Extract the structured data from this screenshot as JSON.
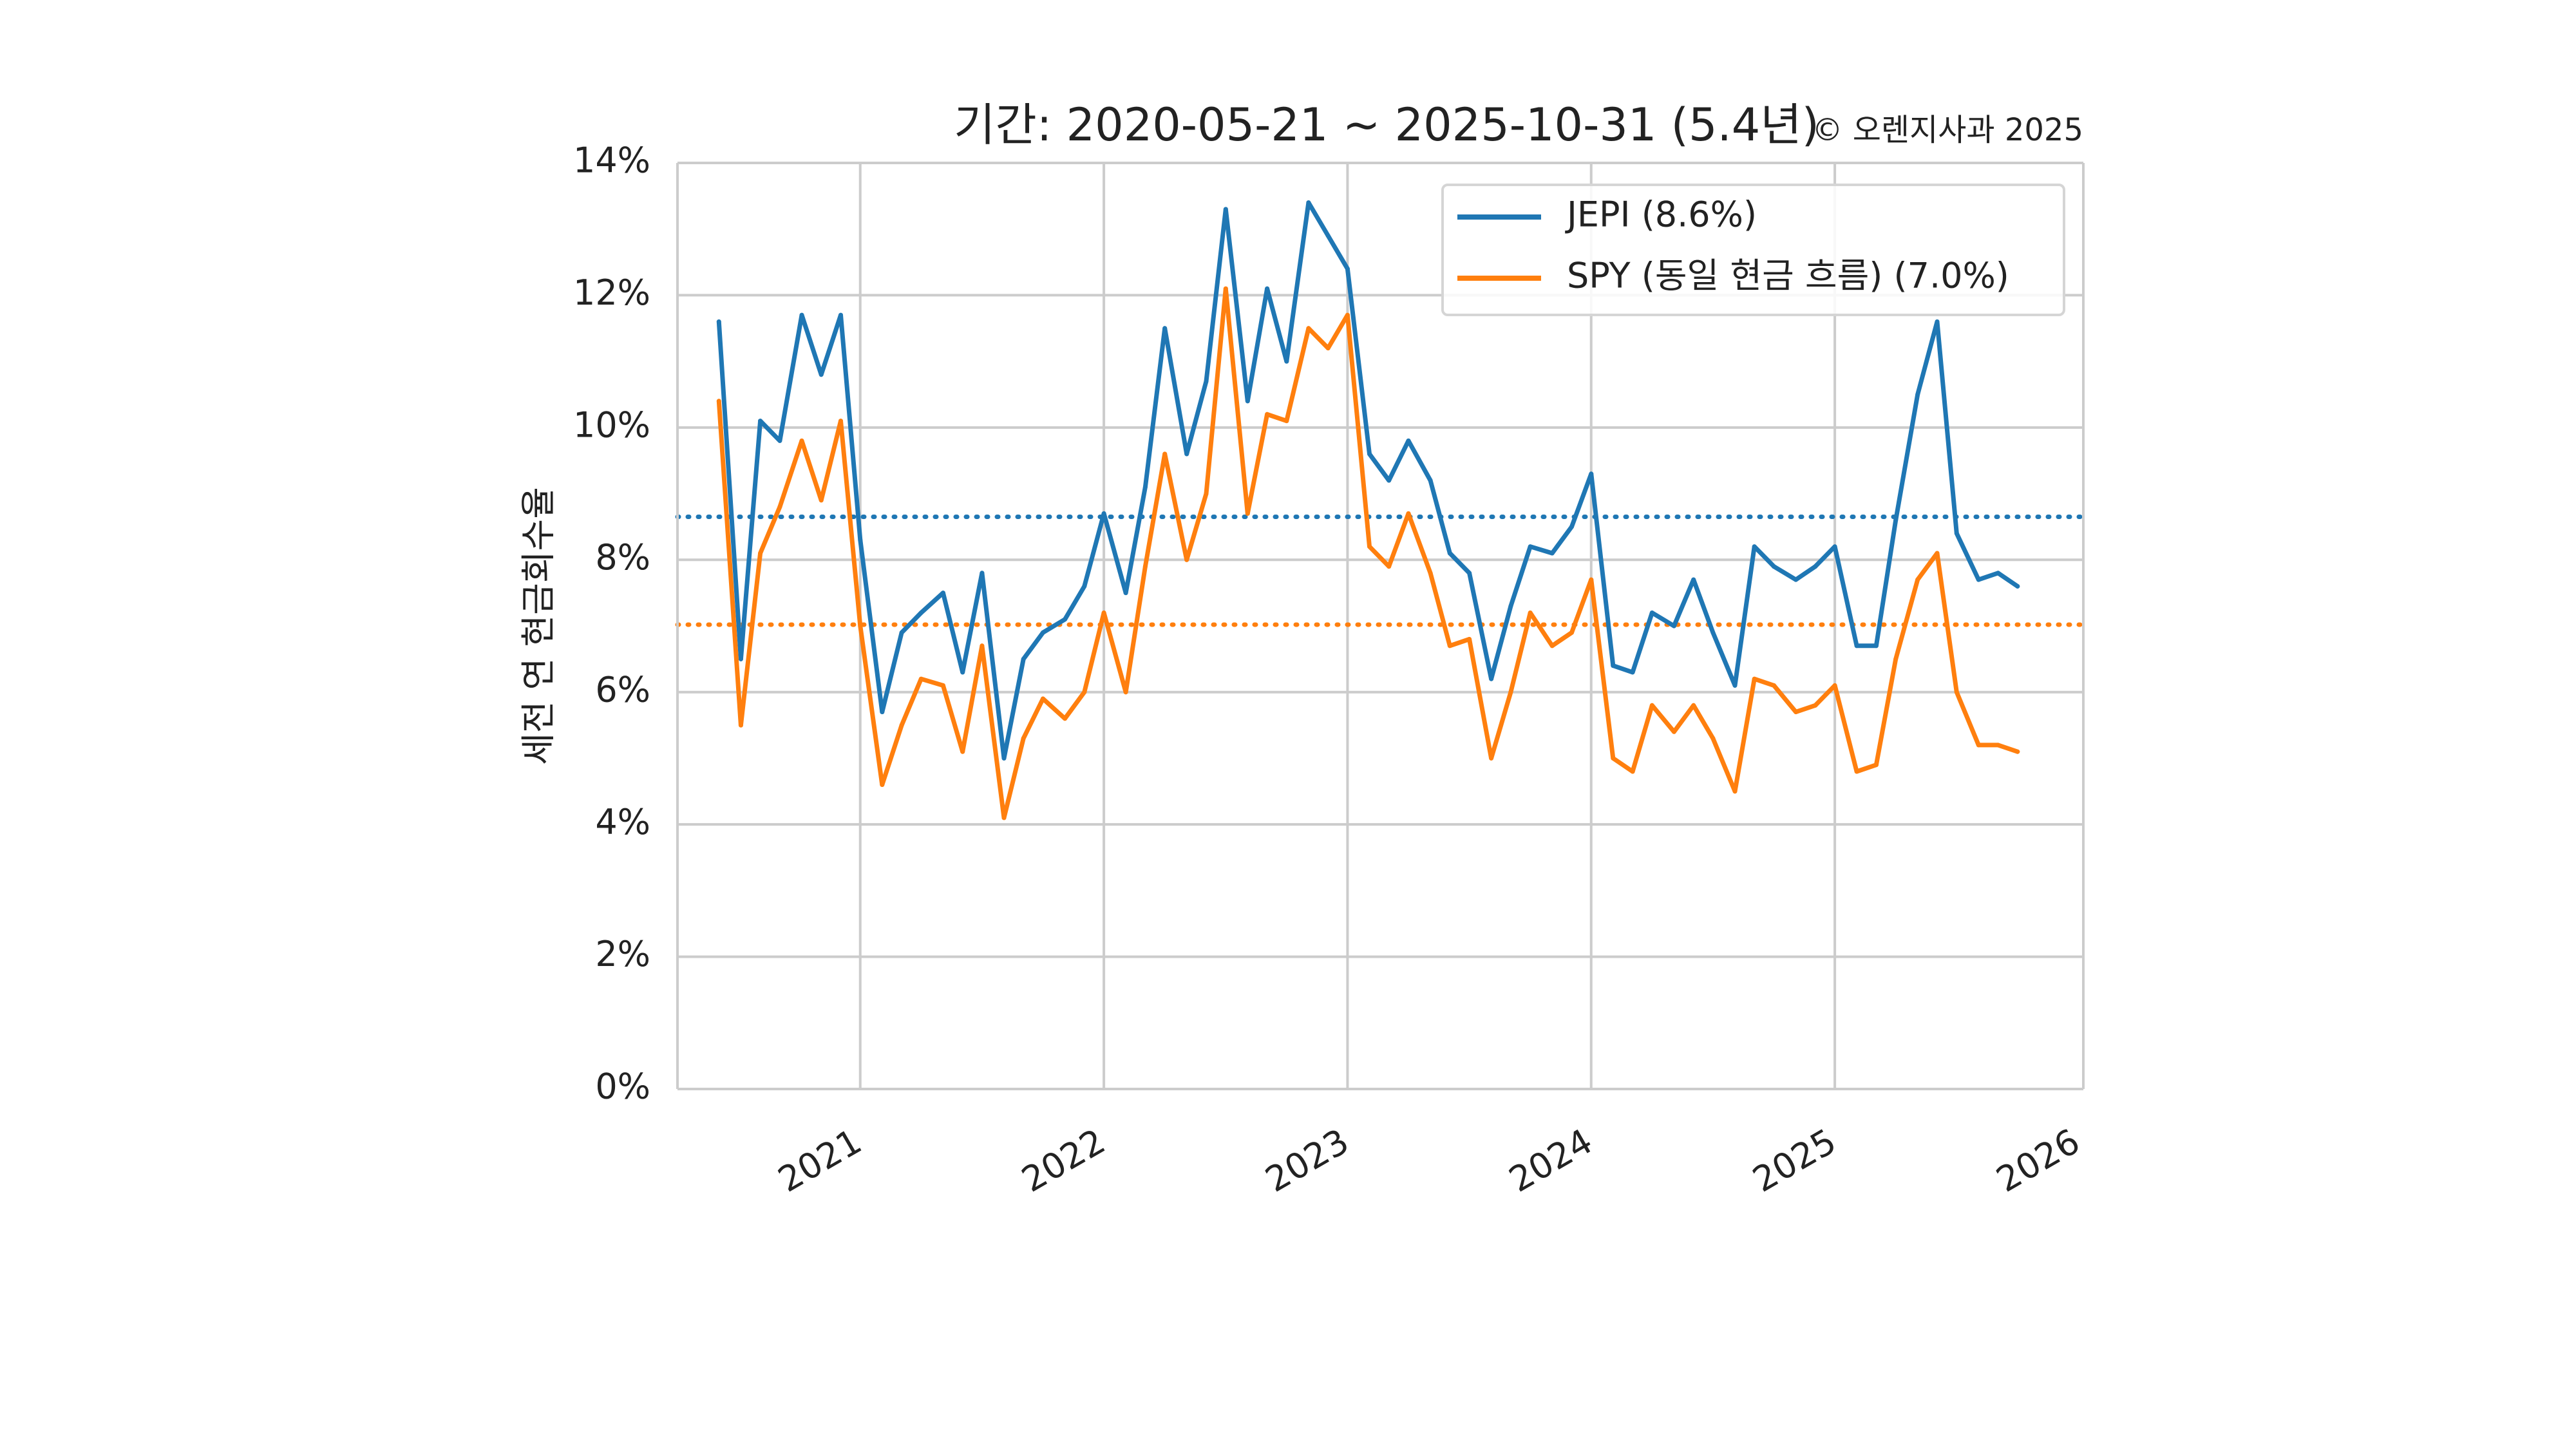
{
  "chart_data": {
    "type": "line",
    "title": "기간: 2020-05-21 ~ 2025-10-31 (5.4년)",
    "copyright": "© 오렌지사과 2025",
    "xlabel": "",
    "ylabel": "세전 연 현금회수율",
    "ylim": [
      0,
      14
    ],
    "xlim": [
      2020.25,
      2026.02
    ],
    "yticks": [
      0,
      2,
      4,
      6,
      8,
      10,
      12,
      14
    ],
    "ytick_labels": [
      "0%",
      "2%",
      "4%",
      "6%",
      "8%",
      "10%",
      "12%",
      "14%"
    ],
    "xticks": [
      2021,
      2022,
      2023,
      2024,
      2025,
      2026
    ],
    "xtick_labels": [
      "2021",
      "2022",
      "2023",
      "2024",
      "2025",
      "2026"
    ],
    "grid": true,
    "legend_position": "top-right",
    "series": [
      {
        "name": "JEPI",
        "legend": "JEPI (8.6%)",
        "color": "#1f77b4",
        "mean": 8.65,
        "x": [
          2020.42,
          2020.51,
          2020.59,
          2020.67,
          2020.76,
          2020.84,
          2020.92,
          2021.0,
          2021.09,
          2021.17,
          2021.25,
          2021.34,
          2021.42,
          2021.5,
          2021.59,
          2021.67,
          2021.75,
          2021.84,
          2021.92,
          2022.0,
          2022.09,
          2022.17,
          2022.25,
          2022.34,
          2022.42,
          2022.5,
          2022.59,
          2022.67,
          2022.75,
          2022.84,
          2022.92,
          2023.0,
          2023.09,
          2023.17,
          2023.25,
          2023.34,
          2023.42,
          2023.5,
          2023.59,
          2023.67,
          2023.75,
          2023.84,
          2023.92,
          2024.0,
          2024.09,
          2024.17,
          2024.25,
          2024.34,
          2024.42,
          2024.5,
          2024.59,
          2024.67,
          2024.75,
          2024.84,
          2024.92,
          2025.0,
          2025.09,
          2025.17,
          2025.25,
          2025.34,
          2025.42,
          2025.5,
          2025.59,
          2025.67,
          2025.75
        ],
        "values": [
          11.6,
          6.5,
          10.1,
          9.8,
          11.7,
          10.8,
          11.7,
          8.3,
          5.7,
          6.9,
          7.2,
          7.5,
          6.3,
          7.8,
          5.0,
          6.5,
          6.9,
          7.1,
          7.6,
          8.7,
          7.5,
          9.1,
          11.5,
          9.6,
          10.7,
          13.3,
          10.4,
          12.1,
          11.0,
          13.4,
          12.9,
          12.4,
          9.6,
          9.2,
          9.8,
          9.2,
          8.1,
          7.8,
          6.2,
          7.3,
          8.2,
          8.1,
          8.5,
          9.3,
          6.4,
          6.3,
          7.2,
          7.0,
          7.7,
          6.9,
          6.1,
          8.2,
          7.9,
          7.7,
          7.9,
          8.2,
          6.7,
          6.7,
          8.6,
          10.5,
          11.6,
          8.4,
          7.7,
          7.8,
          7.6
        ]
      },
      {
        "name": "SPY (동일 현금 흐름)",
        "legend": "SPY (동일 현금 흐름) (7.0%)",
        "color": "#ff7f0e",
        "mean": 7.02,
        "x": [
          2020.42,
          2020.51,
          2020.59,
          2020.67,
          2020.76,
          2020.84,
          2020.92,
          2021.0,
          2021.09,
          2021.17,
          2021.25,
          2021.34,
          2021.42,
          2021.5,
          2021.59,
          2021.67,
          2021.75,
          2021.84,
          2021.92,
          2022.0,
          2022.09,
          2022.17,
          2022.25,
          2022.34,
          2022.42,
          2022.5,
          2022.59,
          2022.67,
          2022.75,
          2022.84,
          2022.92,
          2023.0,
          2023.09,
          2023.17,
          2023.25,
          2023.34,
          2023.42,
          2023.5,
          2023.59,
          2023.67,
          2023.75,
          2023.84,
          2023.92,
          2024.0,
          2024.09,
          2024.17,
          2024.25,
          2024.34,
          2024.42,
          2024.5,
          2024.59,
          2024.67,
          2024.75,
          2024.84,
          2024.92,
          2025.0,
          2025.09,
          2025.17,
          2025.25,
          2025.34,
          2025.42,
          2025.5,
          2025.59,
          2025.67,
          2025.75
        ],
        "values": [
          10.4,
          5.5,
          8.1,
          8.8,
          9.8,
          8.9,
          10.1,
          7.0,
          4.6,
          5.5,
          6.2,
          6.1,
          5.1,
          6.7,
          4.1,
          5.3,
          5.9,
          5.6,
          6.0,
          7.2,
          6.0,
          7.9,
          9.6,
          8.0,
          9.0,
          12.1,
          8.7,
          10.2,
          10.1,
          11.5,
          11.2,
          11.7,
          8.2,
          7.9,
          8.7,
          7.8,
          6.7,
          6.8,
          5.0,
          6.0,
          7.2,
          6.7,
          6.9,
          7.7,
          5.0,
          4.8,
          5.8,
          5.4,
          5.8,
          5.3,
          4.5,
          6.2,
          6.1,
          5.7,
          5.8,
          6.1,
          4.8,
          4.9,
          6.5,
          7.7,
          8.1,
          6.0,
          5.2,
          5.2,
          5.1
        ]
      }
    ]
  }
}
